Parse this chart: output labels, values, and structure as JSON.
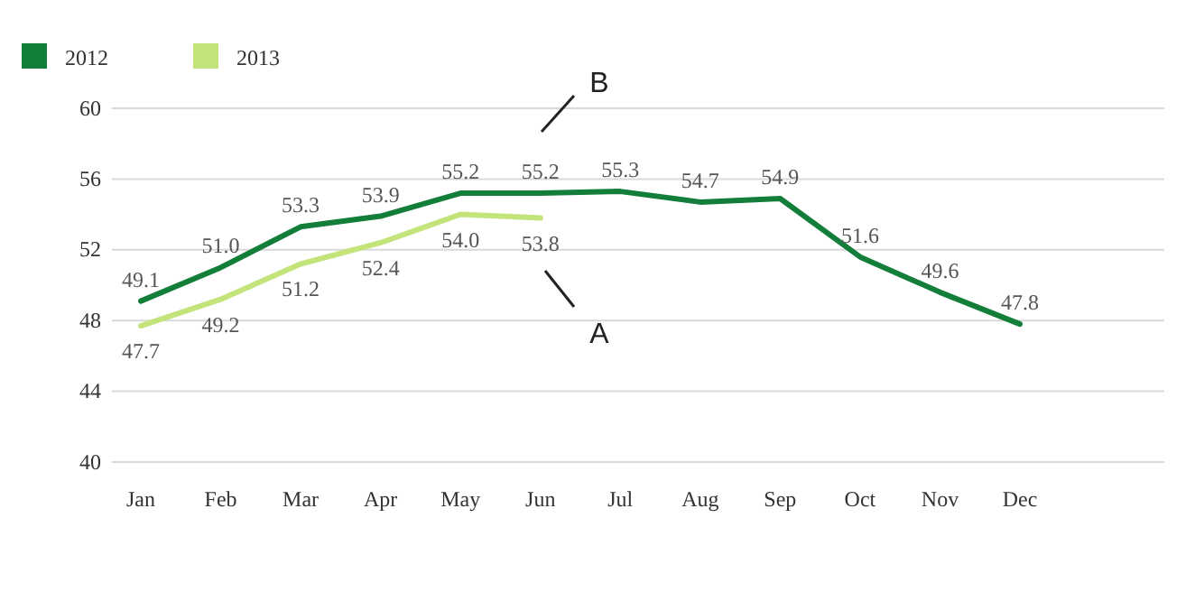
{
  "chart_data": {
    "type": "line",
    "categories": [
      "Jan",
      "Feb",
      "Mar",
      "Apr",
      "May",
      "Jun",
      "Jul",
      "Aug",
      "Sep",
      "Oct",
      "Nov",
      "Dec"
    ],
    "series": [
      {
        "name": "2012",
        "color": "#137d3a",
        "values": [
          49.1,
          51.0,
          53.3,
          53.9,
          55.2,
          55.2,
          55.3,
          54.7,
          54.9,
          51.6,
          49.6,
          47.8
        ],
        "value_labels": [
          "49.1",
          "51.0",
          "53.3",
          "53.9",
          "55.2",
          "55.2",
          "55.3",
          "54.7",
          "54.9",
          "51.6",
          "49.6",
          "47.8"
        ]
      },
      {
        "name": "2013",
        "color": "#c2e47a",
        "values": [
          47.7,
          49.2,
          51.2,
          52.4,
          54.0,
          53.8,
          null,
          null,
          null,
          null,
          null,
          null
        ],
        "value_labels": [
          "47.7",
          "49.2",
          "51.2",
          "52.4",
          "54.0",
          "53.8",
          null,
          null,
          null,
          null,
          null,
          null
        ]
      }
    ],
    "ylim": [
      40,
      60
    ],
    "yticks": [
      40,
      44,
      48,
      52,
      56,
      60
    ],
    "grid": "y",
    "legend": "top left",
    "marker": "none",
    "line_style": "solid",
    "annotations": [
      "B",
      "A"
    ]
  }
}
